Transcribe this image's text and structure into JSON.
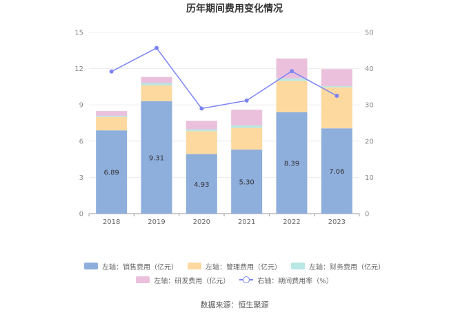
{
  "chart_data": {
    "type": "bar",
    "title": "历年期间费用变化情况",
    "categories": [
      "2018",
      "2019",
      "2020",
      "2021",
      "2022",
      "2023"
    ],
    "left_axis": {
      "ticks": [
        "0",
        "3",
        "6",
        "9",
        "12",
        "15"
      ],
      "ylim": [
        0,
        15
      ]
    },
    "right_axis": {
      "ticks": [
        "0",
        "10",
        "20",
        "30",
        "40",
        "50"
      ],
      "ylim": [
        0,
        50
      ]
    },
    "series": [
      {
        "name": "左轴：销售费用（亿元）",
        "type": "bar",
        "axis": "left",
        "color": "#8eaedc",
        "values": [
          6.89,
          9.31,
          4.93,
          5.3,
          8.39,
          7.06
        ],
        "labels": [
          "6.89",
          "9.31",
          "4.93",
          "5.30",
          "8.39",
          "7.06"
        ]
      },
      {
        "name": "左轴：管理费用（亿元）",
        "type": "bar",
        "axis": "left",
        "color": "#fdd9a0",
        "values": [
          1.1,
          1.3,
          1.9,
          1.8,
          2.6,
          3.4
        ]
      },
      {
        "name": "左轴：财务费用（亿元）",
        "type": "bar",
        "axis": "left",
        "color": "#b9e7e3",
        "values": [
          0.1,
          0.2,
          0.15,
          0.2,
          0.2,
          0.1
        ]
      },
      {
        "name": "左轴：研发费用（亿元）",
        "type": "bar",
        "axis": "left",
        "color": "#eac0dc",
        "values": [
          0.4,
          0.5,
          0.7,
          1.3,
          1.65,
          1.4
        ]
      },
      {
        "name": "右轴：期间费用率（%）",
        "type": "line",
        "axis": "right",
        "color": "#7b84f3",
        "values": [
          39.2,
          45.7,
          29.0,
          31.2,
          39.3,
          32.5
        ]
      }
    ],
    "source": "数据来源：恒生聚源"
  }
}
